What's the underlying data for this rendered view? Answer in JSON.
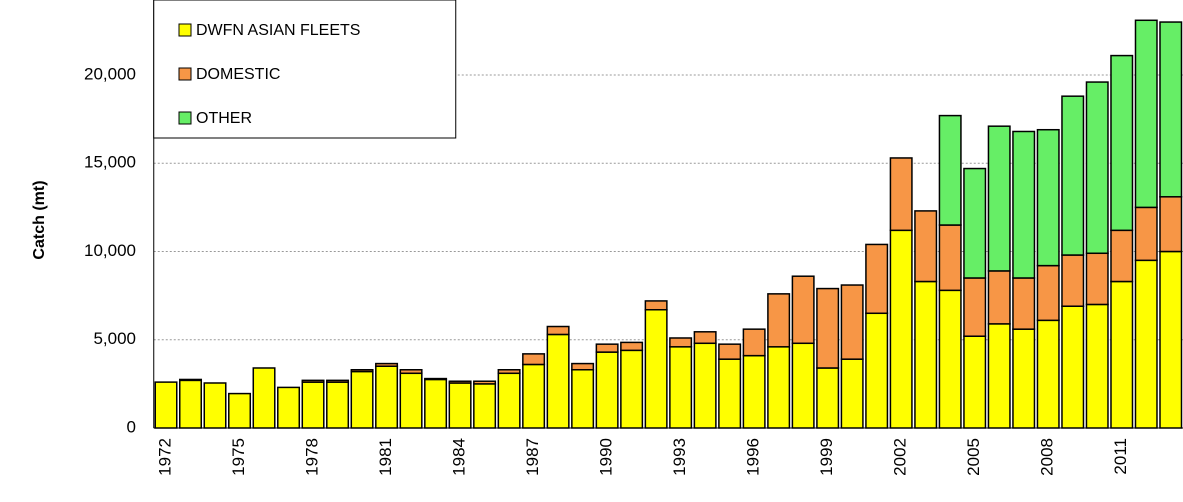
{
  "chart_data": {
    "type": "stacked_bar",
    "y_label": "Catch (mt)",
    "categories": [
      "1972",
      null,
      null,
      "1975",
      null,
      null,
      "1978",
      null,
      null,
      "1981",
      null,
      null,
      "1984",
      null,
      null,
      "1987",
      null,
      null,
      "1990",
      null,
      null,
      "1993",
      null,
      null,
      "1996",
      null,
      null,
      "1999",
      null,
      null,
      "2002",
      null,
      null,
      "2005",
      null,
      null,
      "2008",
      null,
      null,
      "2011",
      null,
      null
    ],
    "series": [
      {
        "name": "DWFN ASIAN FLEETS",
        "color": "#ffff00",
        "values": [
          2600,
          2700,
          2550,
          1950,
          3400,
          2300,
          2600,
          2600,
          3200,
          3500,
          3100,
          2750,
          2550,
          2500,
          3100,
          3600,
          5300,
          3300,
          4300,
          4400,
          6700,
          4600,
          4800,
          3900,
          4100,
          4600,
          4800,
          3400,
          3900,
          6500,
          11200,
          8300,
          7800,
          5200,
          5900,
          5600,
          6100,
          6900,
          7000,
          8300,
          9500,
          10000
        ]
      },
      {
        "name": "DOMESTIC",
        "color": "#f79646",
        "values": [
          0,
          50,
          0,
          0,
          0,
          0,
          100,
          100,
          100,
          150,
          200,
          50,
          100,
          150,
          200,
          600,
          450,
          350,
          450,
          450,
          500,
          500,
          650,
          850,
          1500,
          3000,
          3800,
          4500,
          4200,
          3900,
          4100,
          4000,
          3700,
          3300,
          3000,
          2900,
          3100,
          2900,
          2900,
          2900,
          3000,
          3100
        ]
      },
      {
        "name": "OTHER",
        "color": "#66ee66",
        "values": [
          0,
          0,
          0,
          0,
          0,
          0,
          0,
          0,
          0,
          0,
          0,
          0,
          0,
          0,
          0,
          0,
          0,
          0,
          0,
          0,
          0,
          0,
          0,
          0,
          0,
          0,
          0,
          0,
          0,
          0,
          0,
          0,
          6200,
          6200,
          8200,
          8300,
          7700,
          9000,
          9700,
          9900,
          10600,
          9900
        ]
      }
    ],
    "ylim": [
      0,
      24000
    ],
    "yticks": [
      0,
      {
        "value": 5000,
        "label": "5,000"
      },
      {
        "value": 10000,
        "label": "10,000"
      },
      {
        "value": 15000,
        "label": "15,000"
      },
      {
        "value": 20000,
        "label": "20,000"
      }
    ],
    "grid": true,
    "legend": "top-left"
  }
}
